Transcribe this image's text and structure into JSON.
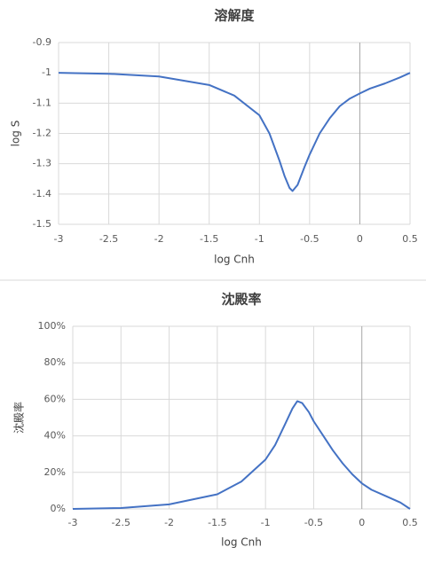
{
  "chart_data": [
    {
      "type": "line",
      "title": "溶解度",
      "x_label": "log Cnh",
      "y_label": "log S",
      "x": [
        -3,
        -2.5,
        -2,
        -1.5,
        -1.25,
        -1,
        -0.9,
        -0.8,
        -0.75,
        -0.7,
        -0.67,
        -0.62,
        -0.55,
        -0.5,
        -0.4,
        -0.3,
        -0.2,
        -0.1,
        0,
        0.1,
        0.25,
        0.4,
        0.5
      ],
      "series": [
        {
          "name": "log S",
          "color": "#4472c4",
          "values": [
            -1.0,
            -1.003,
            -1.012,
            -1.04,
            -1.075,
            -1.14,
            -1.2,
            -1.29,
            -1.34,
            -1.38,
            -1.39,
            -1.37,
            -1.31,
            -1.27,
            -1.2,
            -1.15,
            -1.11,
            -1.085,
            -1.068,
            -1.052,
            -1.035,
            -1.015,
            -1.0
          ]
        }
      ],
      "xlim": [
        -3,
        0.5
      ],
      "xticks": [
        -3,
        -2.5,
        -2,
        -1.5,
        -1,
        -0.5,
        0,
        0.5
      ],
      "ylim": [
        -1.5,
        -0.9
      ],
      "yticks": [
        -0.9,
        -1,
        -1.1,
        -1.2,
        -1.3,
        -1.4,
        -1.5
      ],
      "grid": true
    },
    {
      "type": "line",
      "title": "沈殿率",
      "x_label": "log Cnh",
      "y_label": "沈殿率",
      "x": [
        -3,
        -2.5,
        -2,
        -1.5,
        -1.25,
        -1,
        -0.9,
        -0.8,
        -0.72,
        -0.67,
        -0.62,
        -0.55,
        -0.5,
        -0.4,
        -0.3,
        -0.2,
        -0.1,
        0,
        0.1,
        0.25,
        0.4,
        0.5
      ],
      "series": [
        {
          "name": "沈殿率",
          "color": "#4472c4",
          "values": [
            0,
            0.5,
            2.5,
            8,
            15,
            27,
            35,
            46,
            55,
            59,
            58,
            53,
            48,
            40,
            32,
            25,
            19,
            14,
            10.5,
            7,
            3.5,
            0
          ]
        }
      ],
      "xlim": [
        -3,
        0.5
      ],
      "xticks": [
        -3,
        -2.5,
        -2,
        -1.5,
        -1,
        -0.5,
        0,
        0.5
      ],
      "ylim": [
        0,
        100
      ],
      "yticks": [
        {
          "value": 0,
          "label": "0%"
        },
        {
          "value": 20,
          "label": "20%"
        },
        {
          "value": 40,
          "label": "40%"
        },
        {
          "value": 60,
          "label": "60%"
        },
        {
          "value": 80,
          "label": "80%"
        },
        {
          "value": 100,
          "label": "100%"
        }
      ],
      "grid": true
    }
  ]
}
